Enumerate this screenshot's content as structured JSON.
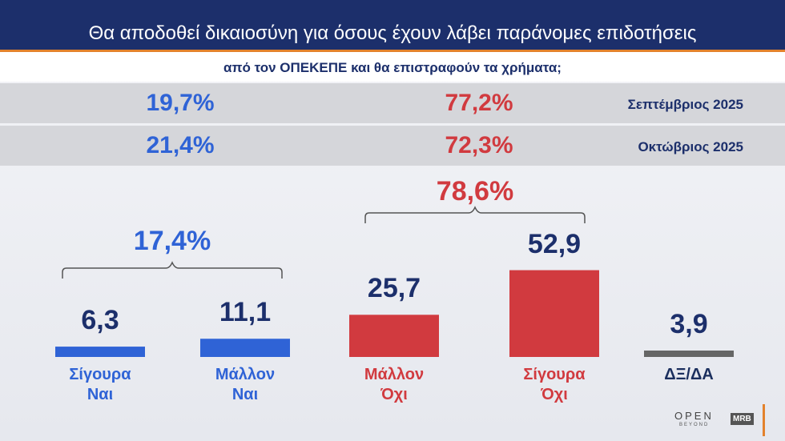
{
  "chart_data": {
    "type": "bar",
    "title": "Θα αποδοθεί δικαιοσύνη για όσους έχουν λάβει παράνομες επιδοτήσεις",
    "subtitle": "από τον ΟΠΕΚΕΠΕ και θα επιστραφούν τα χρήματα;",
    "comparison_rows": [
      {
        "label": "Σεπτέμβριος 2025",
        "value_labels": [
          "19,7%",
          "77,2%"
        ]
      },
      {
        "label": "Οκτώβριος 2025",
        "value_labels": [
          "21,4%",
          "72,3%"
        ]
      }
    ],
    "group_totals": [
      {
        "label": "17,4%",
        "color": "#2f63d6"
      },
      {
        "label": "78,6%",
        "color": "#d13a3f"
      }
    ],
    "categories": [
      "Σίγουρα Ναι",
      "Μάλλον Ναι",
      "Μάλλον Όχι",
      "Σίγουρα Όχι",
      "ΔΞ/ΔΑ"
    ],
    "values": [
      6.3,
      11.1,
      25.7,
      52.9,
      3.9
    ],
    "value_labels": [
      "6,3",
      "11,1",
      "25,7",
      "52,9",
      "3,9"
    ],
    "colors": [
      "#2f63d6",
      "#2f63d6",
      "#d13a3f",
      "#d13a3f",
      "#666666"
    ],
    "category_colors": [
      "#2f63d6",
      "#2f63d6",
      "#d13a3f",
      "#d13a3f",
      "#1b2f5e"
    ],
    "logos": {
      "open": "OPEN",
      "open_sub": "BEYOND",
      "mrb": "MRB"
    }
  }
}
